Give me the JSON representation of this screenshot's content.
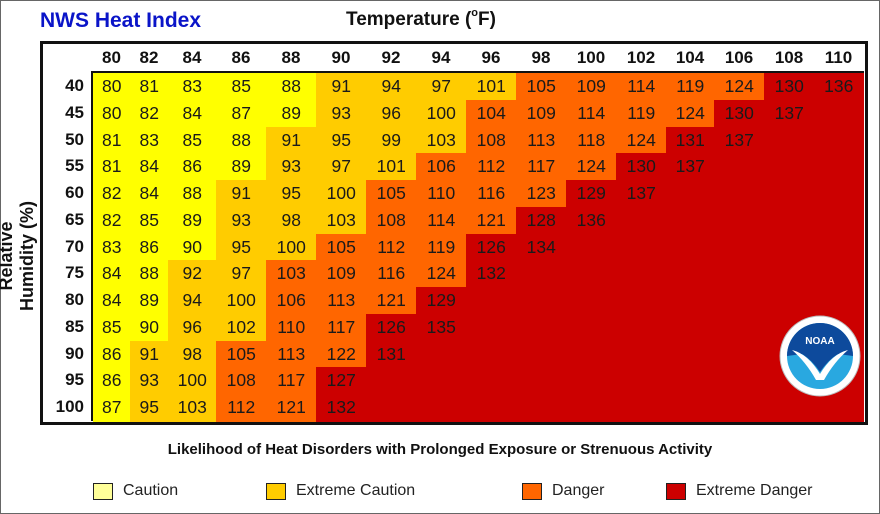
{
  "title": "NWS Heat Index",
  "x_title": {
    "text": "Temperature (",
    "sup": "o",
    "unit": "F)"
  },
  "chart_data": {
    "type": "heatmap",
    "title": "NWS Heat Index",
    "xlabel": "Temperature (°F)",
    "ylabel": "Relative Humidity (%)",
    "x": [
      80,
      82,
      84,
      86,
      88,
      90,
      92,
      94,
      96,
      98,
      100,
      102,
      104,
      106,
      108,
      110
    ],
    "y": [
      40,
      45,
      50,
      55,
      60,
      65,
      70,
      75,
      80,
      85,
      90,
      95,
      100
    ],
    "values": [
      [
        80,
        81,
        83,
        85,
        88,
        91,
        94,
        97,
        101,
        105,
        109,
        114,
        119,
        124,
        130,
        136
      ],
      [
        80,
        82,
        84,
        87,
        89,
        93,
        96,
        100,
        104,
        109,
        114,
        119,
        124,
        130,
        137
      ],
      [
        81,
        83,
        85,
        88,
        91,
        95,
        99,
        103,
        108,
        113,
        118,
        124,
        131,
        137
      ],
      [
        81,
        84,
        86,
        89,
        93,
        97,
        101,
        106,
        112,
        117,
        124,
        130,
        137
      ],
      [
        82,
        84,
        88,
        91,
        95,
        100,
        105,
        110,
        116,
        123,
        129,
        137
      ],
      [
        82,
        85,
        89,
        93,
        98,
        103,
        108,
        114,
        121,
        128,
        136
      ],
      [
        83,
        86,
        90,
        95,
        100,
        105,
        112,
        119,
        126,
        134
      ],
      [
        84,
        88,
        92,
        97,
        103,
        109,
        116,
        124,
        132
      ],
      [
        84,
        89,
        94,
        100,
        106,
        113,
        121,
        129
      ],
      [
        85,
        90,
        96,
        102,
        110,
        117,
        126,
        135
      ],
      [
        86,
        91,
        98,
        105,
        113,
        122,
        131
      ],
      [
        86,
        93,
        100,
        108,
        117,
        127
      ],
      [
        87,
        95,
        103,
        112,
        121,
        132
      ]
    ],
    "levels": [
      [
        0,
        0,
        0,
        0,
        0,
        1,
        1,
        1,
        1,
        2,
        2,
        2,
        2,
        2,
        3,
        3
      ],
      [
        0,
        0,
        0,
        0,
        0,
        1,
        1,
        1,
        2,
        2,
        2,
        2,
        2,
        3,
        3,
        3
      ],
      [
        0,
        0,
        0,
        0,
        1,
        1,
        1,
        1,
        2,
        2,
        2,
        2,
        3,
        3,
        3,
        3
      ],
      [
        0,
        0,
        0,
        0,
        1,
        1,
        1,
        2,
        2,
        2,
        2,
        3,
        3,
        3,
        3,
        3
      ],
      [
        0,
        0,
        0,
        1,
        1,
        1,
        2,
        2,
        2,
        2,
        3,
        3,
        3,
        3,
        3,
        3
      ],
      [
        0,
        0,
        0,
        1,
        1,
        1,
        2,
        2,
        2,
        3,
        3,
        3,
        3,
        3,
        3,
        3
      ],
      [
        0,
        0,
        0,
        1,
        1,
        2,
        2,
        2,
        3,
        3,
        3,
        3,
        3,
        3,
        3,
        3
      ],
      [
        0,
        0,
        1,
        1,
        2,
        2,
        2,
        2,
        3,
        3,
        3,
        3,
        3,
        3,
        3,
        3
      ],
      [
        0,
        0,
        1,
        1,
        2,
        2,
        2,
        3,
        3,
        3,
        3,
        3,
        3,
        3,
        3,
        3
      ],
      [
        0,
        0,
        1,
        1,
        2,
        2,
        3,
        3,
        3,
        3,
        3,
        3,
        3,
        3,
        3,
        3
      ],
      [
        0,
        1,
        1,
        2,
        2,
        2,
        3,
        3,
        3,
        3,
        3,
        3,
        3,
        3,
        3,
        3
      ],
      [
        0,
        1,
        1,
        2,
        2,
        3,
        3,
        3,
        3,
        3,
        3,
        3,
        3,
        3,
        3,
        3
      ],
      [
        0,
        1,
        1,
        2,
        2,
        3,
        3,
        3,
        3,
        3,
        3,
        3,
        3,
        3,
        3,
        3
      ]
    ],
    "level_colors": [
      "#ffff00",
      "#ffcc00",
      "#ff6600",
      "#cc0000"
    ],
    "legend": [
      {
        "label": "Caution",
        "color": "#ffff99"
      },
      {
        "label": "Extreme Caution",
        "color": "#ffcc00"
      },
      {
        "label": "Danger",
        "color": "#ff6600"
      },
      {
        "label": "Extreme Danger",
        "color": "#cc0000"
      }
    ],
    "legend_placement": "bottom"
  },
  "footer": "Likelihood of Heat Disorders with Prolonged Exposure or Strenuous Activity",
  "logo": {
    "text": "NOAA",
    "icon": "noaa-logo-icon"
  }
}
